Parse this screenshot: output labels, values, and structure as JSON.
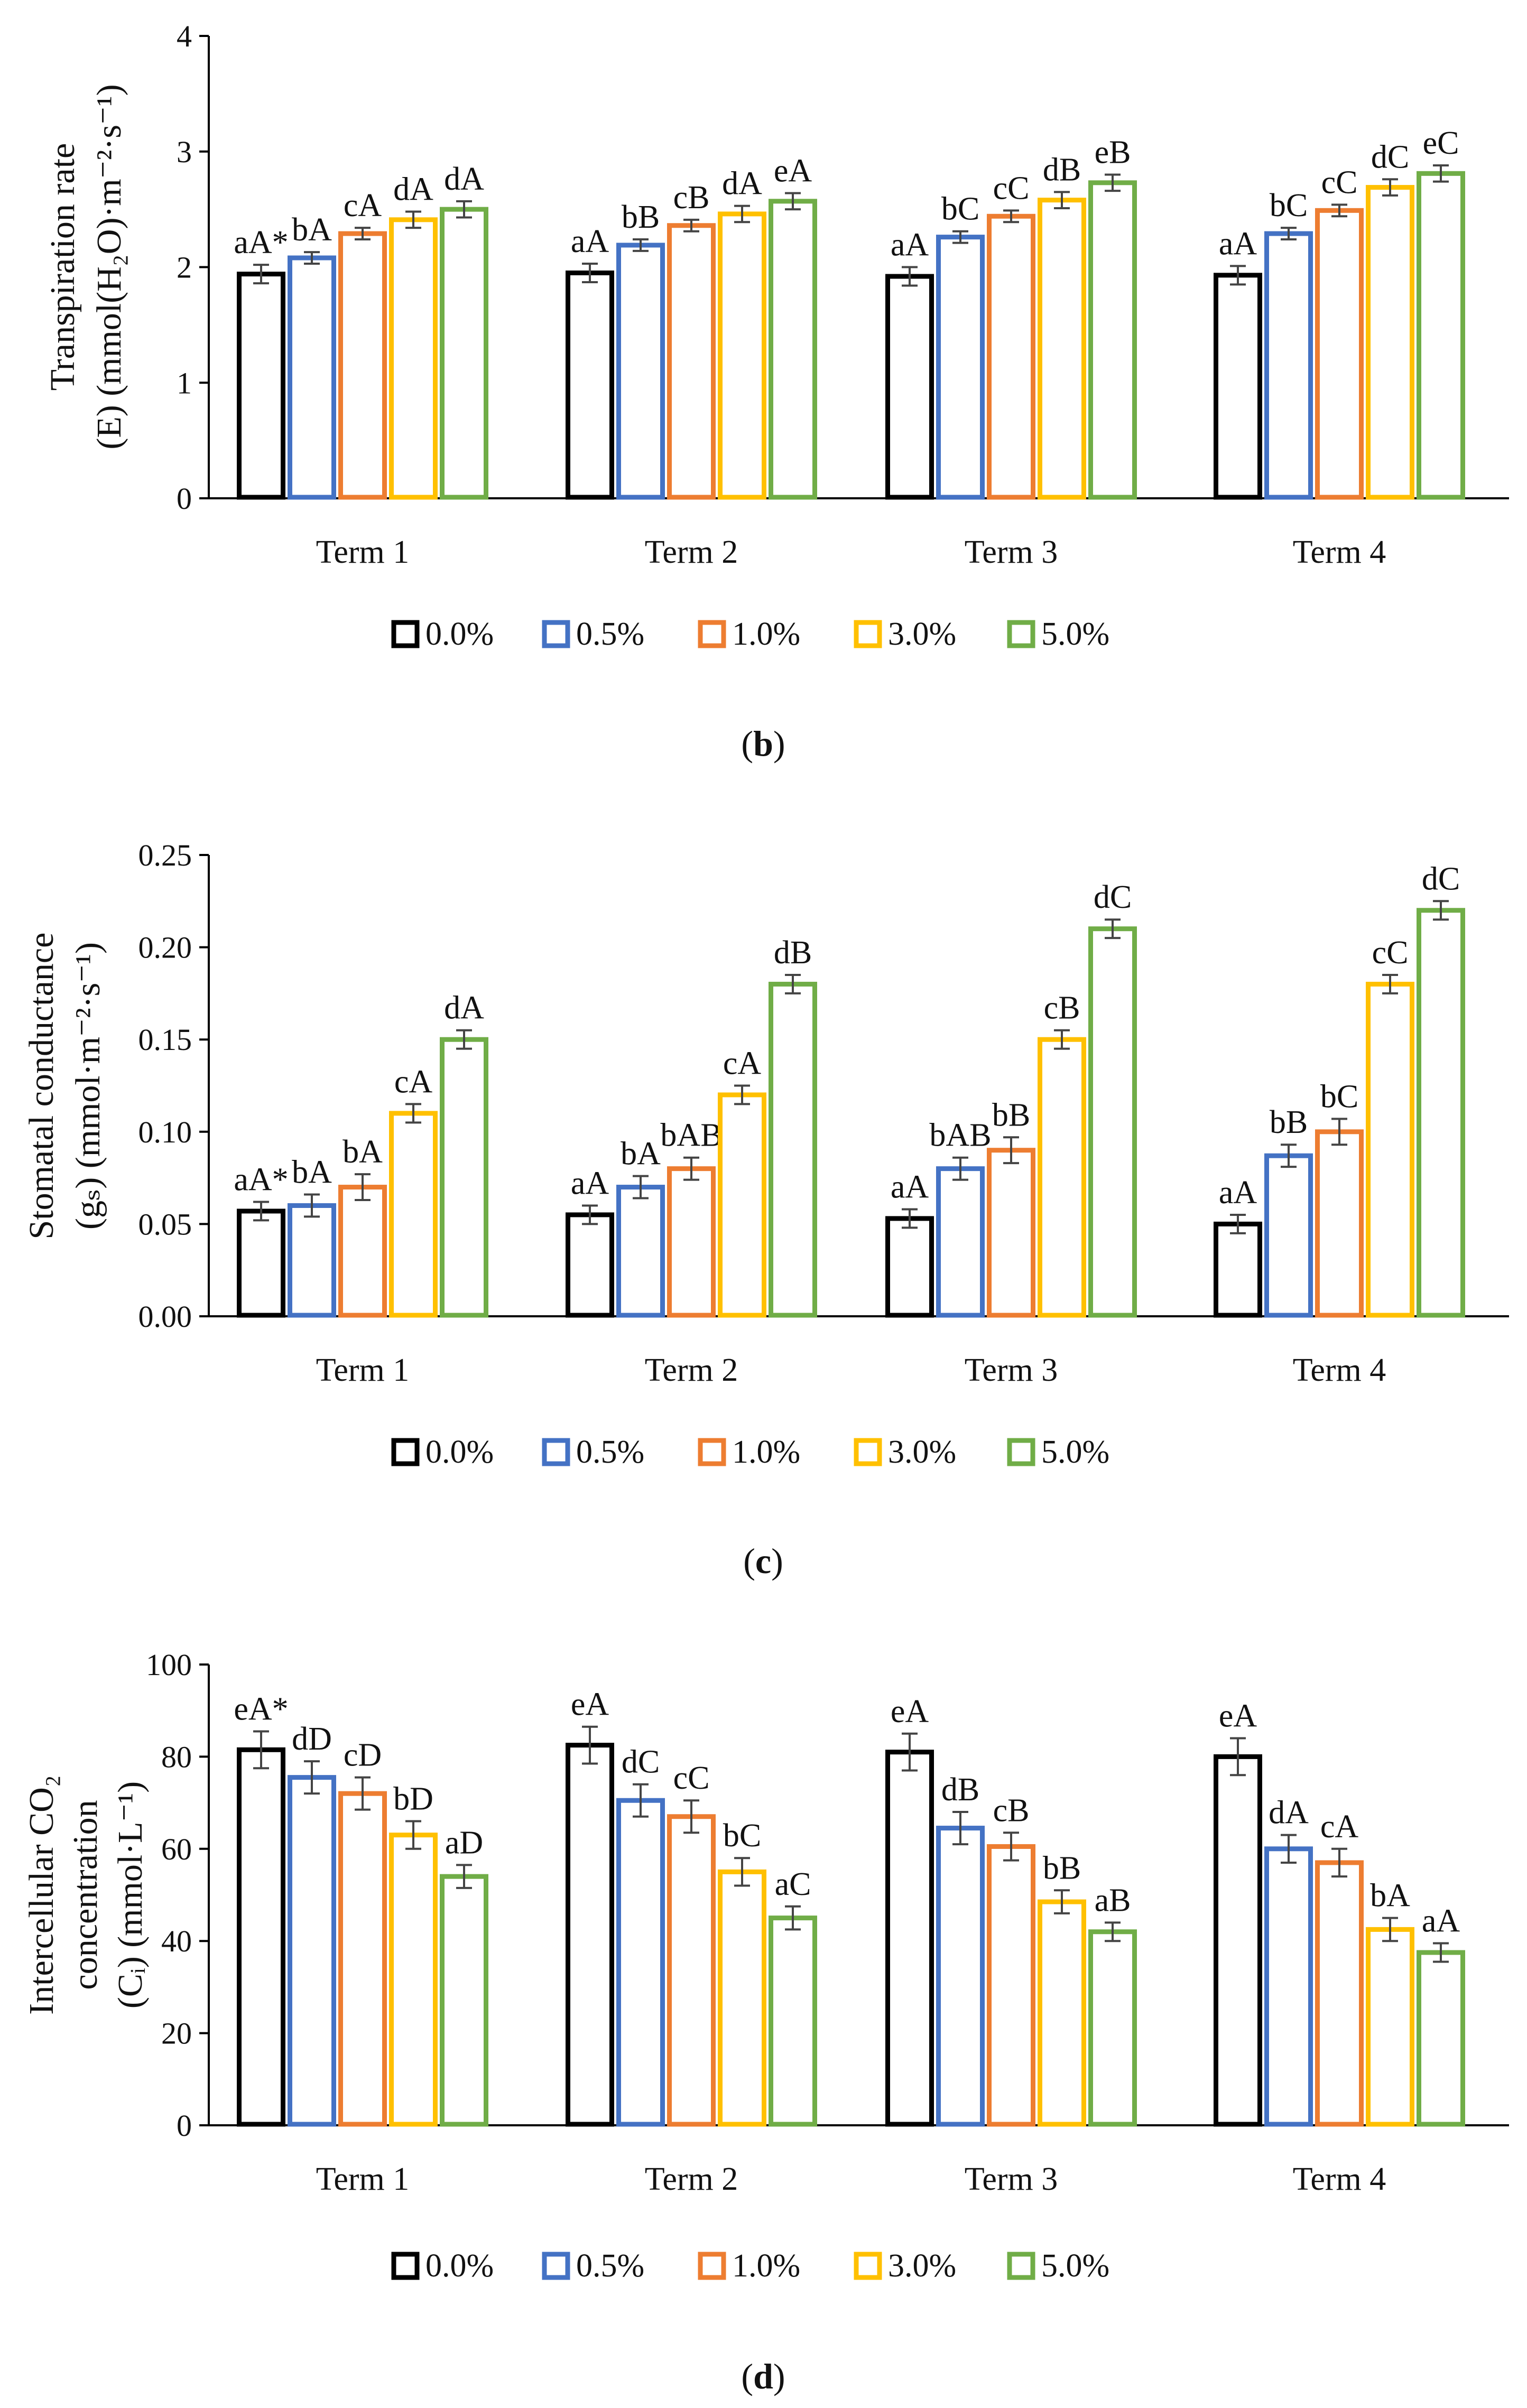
{
  "legend": {
    "labels": [
      "0.0%",
      "0.5%",
      "1.0%",
      "3.0%",
      "5.0%"
    ]
  },
  "colors": [
    "#000000",
    "#4472C4",
    "#ED7D31",
    "#FFC000",
    "#70AD47"
  ],
  "chart_data": [
    {
      "id": "b",
      "type": "bar",
      "panel_label": "b",
      "ylabel_line1": "Transpiration rate",
      "ylabel_line2": "(E) (mmol(H₂O)·m⁻²·s⁻¹)",
      "ylim": [
        0,
        4
      ],
      "yticks": [
        0,
        1,
        2,
        3,
        4
      ],
      "ytick_labels": [
        "0",
        "1",
        "2",
        "3",
        "4"
      ],
      "categories": [
        "Term 1",
        "Term 2",
        "Term 3",
        "Term 4"
      ],
      "series": [
        {
          "name": "0.0%",
          "values": [
            1.94,
            1.95,
            1.92,
            1.93
          ],
          "errors": [
            0.08,
            0.08,
            0.08,
            0.08
          ],
          "labels": [
            "aA*",
            "aA",
            "aA",
            "aA"
          ]
        },
        {
          "name": "0.5%",
          "values": [
            2.08,
            2.19,
            2.26,
            2.29
          ],
          "errors": [
            0.05,
            0.05,
            0.05,
            0.05
          ],
          "labels": [
            "bA",
            "bB",
            "bC",
            "bC"
          ]
        },
        {
          "name": "1.0%",
          "values": [
            2.29,
            2.36,
            2.44,
            2.49
          ],
          "errors": [
            0.05,
            0.05,
            0.05,
            0.05
          ],
          "labels": [
            "cA",
            "cB",
            "cC",
            "cC"
          ]
        },
        {
          "name": "3.0%",
          "values": [
            2.41,
            2.46,
            2.58,
            2.69
          ],
          "errors": [
            0.07,
            0.07,
            0.07,
            0.07
          ],
          "labels": [
            "dA",
            "dA",
            "dB",
            "dC"
          ]
        },
        {
          "name": "5.0%",
          "values": [
            2.5,
            2.57,
            2.73,
            2.81
          ],
          "errors": [
            0.07,
            0.07,
            0.07,
            0.07
          ],
          "labels": [
            "dA",
            "eA",
            "eB",
            "eC"
          ]
        }
      ]
    },
    {
      "id": "c",
      "type": "bar",
      "panel_label": "c",
      "ylabel_line1": "Stomatal conductance",
      "ylabel_line2": "(gₛ) (mmol·m⁻²·s⁻¹)",
      "ylim": [
        0,
        0.25
      ],
      "yticks": [
        0,
        0.05,
        0.1,
        0.15,
        0.2,
        0.25
      ],
      "ytick_labels": [
        "0.00",
        "0.05",
        "0.10",
        "0.15",
        "0.20",
        "0.25"
      ],
      "categories": [
        "Term 1",
        "Term 2",
        "Term 3",
        "Term 4"
      ],
      "series": [
        {
          "name": "0.0%",
          "values": [
            0.057,
            0.055,
            0.053,
            0.05
          ],
          "errors": [
            0.005,
            0.005,
            0.005,
            0.005
          ],
          "labels": [
            "aA*",
            "aA",
            "aA",
            "aA"
          ]
        },
        {
          "name": "0.5%",
          "values": [
            0.06,
            0.07,
            0.08,
            0.087
          ],
          "errors": [
            0.006,
            0.006,
            0.006,
            0.006
          ],
          "labels": [
            "bA",
            "bA",
            "bAB",
            "bB"
          ]
        },
        {
          "name": "1.0%",
          "values": [
            0.07,
            0.08,
            0.09,
            0.1
          ],
          "errors": [
            0.007,
            0.006,
            0.007,
            0.007
          ],
          "labels": [
            "bA",
            "bAB",
            "bB",
            "bC"
          ]
        },
        {
          "name": "3.0%",
          "values": [
            0.11,
            0.12,
            0.15,
            0.18
          ],
          "errors": [
            0.005,
            0.005,
            0.005,
            0.005
          ],
          "labels": [
            "cA",
            "cA",
            "cB",
            "cC"
          ]
        },
        {
          "name": "5.0%",
          "values": [
            0.15,
            0.18,
            0.21,
            0.22
          ],
          "errors": [
            0.005,
            0.005,
            0.005,
            0.005
          ],
          "labels": [
            "dA",
            "dB",
            "dC",
            "dC"
          ]
        }
      ]
    },
    {
      "id": "d",
      "type": "bar",
      "panel_label": "d",
      "ylabel_line1": "Intercellular CO₂",
      "ylabel_line2": "concentration",
      "ylabel_line3": "(Cᵢ) (mmol·L⁻¹)",
      "ylim": [
        0,
        100
      ],
      "yticks": [
        0,
        20,
        40,
        60,
        80,
        100
      ],
      "ytick_labels": [
        "0",
        "20",
        "40",
        "60",
        "80",
        "100"
      ],
      "categories": [
        "Term 1",
        "Term 2",
        "Term 3",
        "Term 4"
      ],
      "series": [
        {
          "name": "0.0%",
          "values": [
            81.5,
            82.5,
            81.0,
            80.0
          ],
          "errors": [
            4,
            4,
            4,
            4
          ],
          "labels": [
            "eA*",
            "eA",
            "eA",
            "eA"
          ]
        },
        {
          "name": "0.5%",
          "values": [
            75.5,
            70.5,
            64.5,
            60.0
          ],
          "errors": [
            3.5,
            3.5,
            3.5,
            3
          ],
          "labels": [
            "dD",
            "dC",
            "dB",
            "dA"
          ]
        },
        {
          "name": "1.0%",
          "values": [
            72.0,
            67.0,
            60.5,
            57.0
          ],
          "errors": [
            3.5,
            3.5,
            3,
            3
          ],
          "labels": [
            "cD",
            "cC",
            "cB",
            "cA"
          ]
        },
        {
          "name": "3.0%",
          "values": [
            63.0,
            55.0,
            48.5,
            42.5
          ],
          "errors": [
            3,
            3,
            2.5,
            2.5
          ],
          "labels": [
            "bD",
            "bC",
            "bB",
            "bA"
          ]
        },
        {
          "name": "5.0%",
          "values": [
            54.0,
            45.0,
            42.0,
            37.5
          ],
          "errors": [
            2.5,
            2.5,
            2,
            2
          ],
          "labels": [
            "aD",
            "aC",
            "aB",
            "aA"
          ]
        }
      ]
    }
  ]
}
